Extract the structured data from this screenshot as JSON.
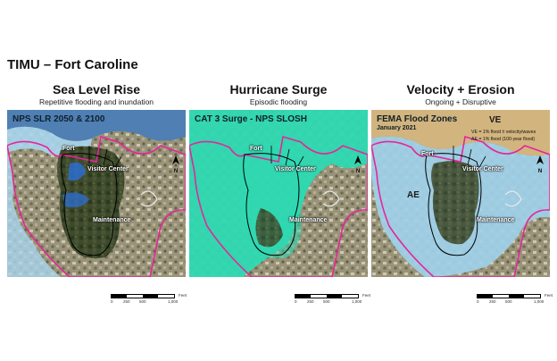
{
  "page": {
    "title": "TIMU – Fort Caroline"
  },
  "panels": [
    {
      "title": "Sea Level Rise",
      "subtitle": "Repetitive flooding and inundation",
      "map_header": "NPS SLR 2050 & 2100",
      "places": {
        "fort": "Fort",
        "visitor_center": "Visitor Center",
        "maintenance": "Maintenance"
      },
      "north": "N",
      "scale": {
        "ticks": [
          "0",
          "250",
          "500",
          "1,000"
        ],
        "unit": "Feet"
      }
    },
    {
      "title": "Hurricane Surge",
      "subtitle": "Episodic flooding",
      "map_header": "CAT 3 Surge - NPS SLOSH",
      "places": {
        "fort": "Fort",
        "visitor_center": "Visitor Center",
        "maintenance": "Maintenance"
      },
      "north": "N",
      "scale": {
        "ticks": [
          "0",
          "250",
          "500",
          "1,000"
        ],
        "unit": "Feet"
      }
    },
    {
      "title": "Velocity + Erosion",
      "subtitle": "Ongoing + Disruptive",
      "map_header": "FEMA Flood Zones",
      "map_subheader": "January 2021",
      "zone_ve": "VE",
      "zone_ae": "AE",
      "legend": [
        "VE = 1% flood ± velocity/waves",
        "AE = 1% flood (100-year flood)"
      ],
      "places": {
        "fort": "Fort",
        "visitor_center": "Visitor Center",
        "maintenance": "Maintenance"
      },
      "north": "N",
      "scale": {
        "ticks": [
          "0",
          "250",
          "500",
          "1,000"
        ],
        "unit": "Feet"
      }
    }
  ],
  "colors": {
    "water_blue": "#4f7fb3",
    "slr_light": "#a9d6ee",
    "slr_dark": "#2c6fd1",
    "surge_teal": "#2dd9b2",
    "fema_ve": "#d2b47e",
    "fema_ae": "#9fd0ea",
    "boundary_magenta": "#e6259a",
    "trail_black": "#000000"
  }
}
